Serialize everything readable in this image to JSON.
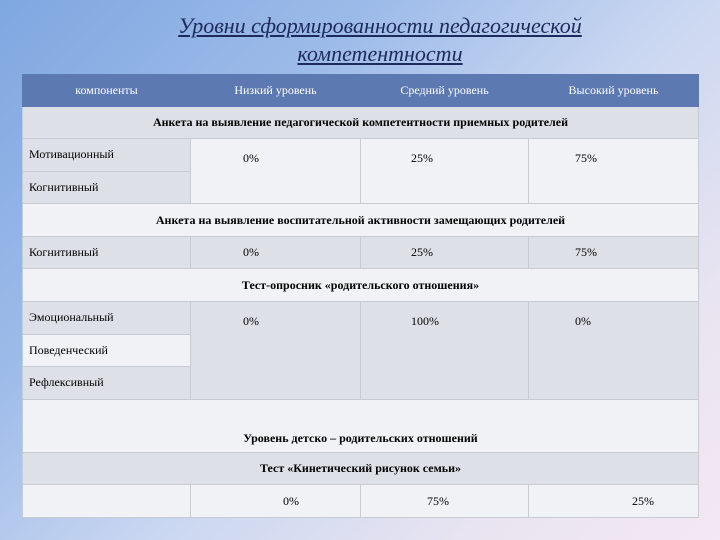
{
  "title": "Уровни сформированности педагогической компетентности",
  "header": {
    "components": "компоненты",
    "low": "Низкий уровень",
    "medium": "Средний уровень",
    "high": "Высокий уровень"
  },
  "sections": [
    {
      "title": "Анкета на выявление педагогической компетентности приемных родителей",
      "rows": [
        "Мотивационный",
        "Когнитивный"
      ],
      "values": [
        "0%",
        "25%",
        "75%"
      ]
    },
    {
      "title": "Анкета на выявление воспитательной активности замещающих родителей",
      "rows": [
        "Когнитивный"
      ],
      "values": [
        "0%",
        "25%",
        "75%"
      ]
    },
    {
      "title": "Тест-опросник «родительского отношения»",
      "rows": [
        "Эмоциональный",
        "Поведенческий",
        "Рефлексивный"
      ],
      "values": [
        "0%",
        "100%",
        "0%"
      ]
    }
  ],
  "bottom": {
    "title1": "Уровень детско – родительских отношений",
    "title2": "Тест «Кинетический рисунок семьи»",
    "values": [
      "0%",
      "75%",
      "25%"
    ]
  }
}
